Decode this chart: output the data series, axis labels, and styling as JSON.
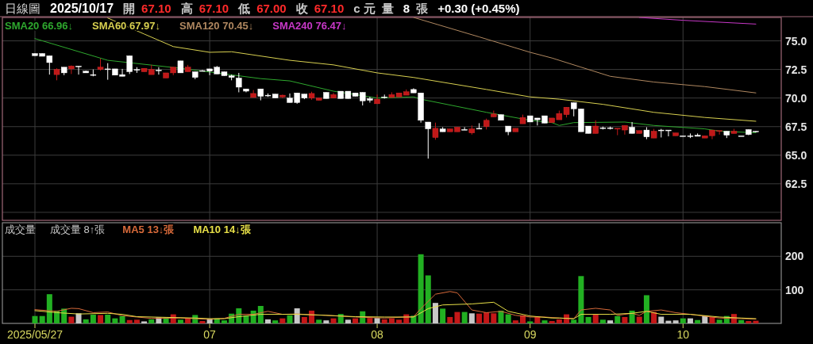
{
  "chart_data": [
    {
      "type": "candlestick",
      "title": "日線圖",
      "subtitle": "2025/10/17",
      "annotations": [
        "開",
        "67.10",
        "高",
        "67.10",
        "低",
        "67.00",
        "收",
        "67.10",
        "c 元",
        "量",
        "8",
        "張",
        "+0.30 (+0.45%)"
      ],
      "categories": [
        "2025/05/27",
        null,
        null,
        null,
        null,
        null,
        null,
        null,
        null,
        null,
        null,
        null,
        null,
        null,
        null,
        null,
        null,
        null,
        null,
        null,
        null,
        null,
        null,
        null,
        "07",
        null,
        null,
        null,
        null,
        null,
        null,
        null,
        null,
        null,
        null,
        null,
        null,
        null,
        null,
        null,
        null,
        null,
        null,
        null,
        null,
        null,
        null,
        "08",
        null,
        null,
        null,
        null,
        null,
        null,
        null,
        null,
        null,
        null,
        null,
        null,
        null,
        null,
        null,
        null,
        null,
        null,
        null,
        null,
        "09",
        null,
        null,
        null,
        null,
        null,
        null,
        null,
        null,
        null,
        null,
        null,
        null,
        null,
        null,
        null,
        null,
        null,
        null,
        null,
        null,
        "10",
        null,
        null,
        null,
        null,
        null,
        null,
        null,
        null,
        null,
        null
      ],
      "ohlc": [
        [
          73.9,
          73.9,
          73.7,
          73.7
        ],
        [
          73.9,
          73.9,
          73.65,
          73.65
        ],
        [
          73.7,
          73.7,
          72.05,
          73.1
        ],
        [
          72.05,
          72.6,
          71.55,
          72.5
        ],
        [
          72.7,
          72.7,
          72.0,
          72.2
        ],
        [
          72.55,
          72.85,
          72.1,
          72.8
        ],
        [
          72.8,
          72.8,
          72.05,
          72.8
        ],
        [
          72.35,
          72.4,
          72.2,
          72.2
        ],
        [
          72.05,
          72.5,
          71.9,
          72.05
        ],
        [
          72.5,
          73.45,
          72.4,
          72.7
        ],
        [
          72.55,
          73.05,
          71.6,
          72.55
        ],
        [
          72.55,
          72.55,
          72.0,
          72.0
        ],
        [
          72.05,
          72.55,
          71.9,
          71.9
        ],
        [
          73.7,
          73.7,
          72.1,
          72.3
        ],
        [
          72.5,
          72.7,
          72.2,
          72.5
        ],
        [
          72.3,
          72.6,
          72.3,
          72.6
        ],
        [
          72.05,
          72.9,
          72.05,
          72.5
        ],
        [
          72.45,
          72.7,
          72.05,
          72.45
        ],
        [
          71.75,
          72.2,
          71.75,
          72.2
        ],
        [
          72.2,
          72.7,
          72.0,
          72.7
        ],
        [
          73.25,
          73.25,
          72.2,
          72.2
        ],
        [
          72.3,
          72.9,
          72.3,
          72.7
        ],
        [
          72.3,
          72.3,
          71.65,
          71.8
        ],
        [
          72.4,
          72.45,
          72.35,
          72.4
        ],
        [
          72.55,
          72.55,
          72.0,
          72.35
        ],
        [
          72.7,
          72.8,
          72.1,
          72.1
        ],
        [
          72.3,
          72.3,
          71.95,
          71.95
        ],
        [
          71.95,
          72.05,
          71.55,
          71.8
        ],
        [
          71.75,
          72.2,
          70.5,
          70.95
        ],
        [
          70.8,
          70.8,
          70.5,
          70.6
        ],
        [
          70.05,
          70.7,
          70.05,
          70.4
        ],
        [
          70.8,
          70.8,
          69.8,
          70.15
        ],
        [
          70.25,
          70.4,
          70.1,
          70.25
        ],
        [
          70.35,
          70.35,
          70.0,
          70.0
        ],
        [
          70.1,
          70.3,
          70.0,
          70.25
        ],
        [
          70.0,
          70.4,
          69.6,
          69.6
        ],
        [
          70.45,
          70.45,
          69.5,
          69.6
        ],
        [
          70.35,
          70.35,
          69.9,
          70.0
        ],
        [
          70.0,
          70.55,
          69.85,
          70.4
        ],
        [
          69.8,
          70.0,
          69.8,
          70.0
        ],
        [
          70.5,
          70.5,
          69.95,
          69.95
        ],
        [
          70.0,
          70.45,
          70.0,
          70.3
        ],
        [
          70.6,
          70.6,
          69.95,
          69.95
        ],
        [
          70.6,
          70.6,
          69.95,
          69.95
        ],
        [
          70.45,
          70.45,
          70.15,
          70.15
        ],
        [
          70.5,
          70.5,
          69.35,
          69.75
        ],
        [
          69.95,
          70.1,
          69.6,
          69.8
        ],
        [
          69.5,
          70.3,
          69.5,
          69.9
        ],
        [
          70.1,
          70.3,
          69.95,
          70.1
        ],
        [
          70.05,
          70.5,
          70.05,
          70.3
        ],
        [
          70.1,
          70.45,
          70.1,
          70.45
        ],
        [
          70.25,
          70.75,
          70.25,
          70.55
        ],
        [
          70.75,
          70.85,
          70.45,
          70.45
        ],
        [
          70.45,
          70.45,
          67.85,
          68.05
        ],
        [
          67.9,
          67.9,
          64.7,
          67.3
        ],
        [
          66.55,
          67.85,
          66.35,
          67.35
        ],
        [
          67.3,
          67.45,
          67.05,
          67.05
        ],
        [
          67.05,
          67.3,
          67.05,
          67.3
        ],
        [
          67.05,
          67.45,
          67.05,
          67.45
        ],
        [
          67.25,
          67.45,
          67.2,
          67.25
        ],
        [
          66.95,
          67.6,
          66.8,
          67.3
        ],
        [
          67.35,
          67.8,
          67.35,
          67.35
        ],
        [
          67.5,
          68.2,
          67.25,
          68.05
        ],
        [
          68.35,
          68.9,
          68.35,
          68.6
        ],
        [
          68.55,
          68.55,
          68.05,
          68.05
        ],
        [
          67.55,
          67.55,
          66.75,
          67.05
        ],
        [
          67.05,
          67.35,
          67.05,
          67.35
        ],
        [
          67.75,
          68.55,
          67.75,
          68.3
        ],
        [
          68.45,
          68.45,
          67.9,
          67.9
        ],
        [
          68.25,
          68.25,
          67.6,
          68.1
        ],
        [
          68.45,
          68.45,
          67.8,
          67.8
        ],
        [
          67.85,
          68.25,
          67.85,
          68.25
        ],
        [
          68.1,
          68.9,
          68.1,
          68.65
        ],
        [
          68.55,
          69.2,
          68.3,
          69.2
        ],
        [
          69.6,
          69.6,
          68.4,
          69.05
        ],
        [
          69.05,
          69.05,
          67.05,
          67.05
        ],
        [
          67.55,
          67.55,
          66.9,
          66.9
        ],
        [
          66.9,
          68.05,
          66.9,
          67.55
        ],
        [
          67.4,
          67.5,
          67.25,
          67.4
        ],
        [
          67.4,
          67.5,
          67.25,
          67.4
        ],
        [
          67.3,
          67.35,
          66.75,
          67.35
        ],
        [
          67.2,
          67.6,
          66.8,
          67.6
        ],
        [
          67.45,
          67.9,
          66.9,
          66.9
        ],
        [
          66.9,
          67.15,
          66.9,
          67.15
        ],
        [
          67.2,
          67.45,
          66.4,
          66.6
        ],
        [
          66.5,
          67.3,
          66.5,
          67.1
        ],
        [
          67.2,
          67.3,
          66.55,
          67.2
        ],
        [
          67.2,
          67.2,
          66.65,
          67.2
        ],
        [
          66.7,
          66.95,
          66.7,
          66.95
        ],
        [
          66.7,
          66.7,
          66.7,
          66.7
        ],
        [
          66.7,
          66.9,
          66.5,
          66.7
        ],
        [
          66.75,
          66.9,
          66.65,
          66.65
        ],
        [
          66.5,
          66.7,
          66.5,
          66.7
        ],
        [
          66.7,
          67.2,
          66.4,
          67.2
        ],
        [
          67.1,
          67.15,
          66.8,
          67.15
        ],
        [
          67.1,
          67.1,
          66.5,
          66.75
        ],
        [
          66.9,
          67.3,
          66.9,
          67.1
        ],
        [
          66.7,
          66.7,
          66.7,
          66.7
        ],
        [
          67.25,
          67.25,
          66.75,
          66.8
        ],
        [
          67.1,
          67.1,
          67.0,
          67.1
        ]
      ],
      "series": [
        {
          "type": "line",
          "name": "SMA20 66.96↓",
          "color": "#2ea82e",
          "values": [
            75.2,
            null,
            null,
            null,
            null,
            null,
            null,
            null,
            null,
            null,
            73.3,
            null,
            null,
            null,
            null,
            null,
            null,
            null,
            null,
            null,
            72.6,
            null,
            null,
            null,
            null,
            null,
            null,
            null,
            null,
            null,
            null,
            71.7,
            null,
            null,
            null,
            71.5,
            null,
            null,
            null,
            null,
            null,
            70.6,
            null,
            null,
            null,
            null,
            null,
            70.0,
            null,
            null,
            null,
            null,
            70.1,
            69.9,
            null,
            null,
            null,
            null,
            null,
            null,
            null,
            null,
            68.75,
            null,
            null,
            null,
            null,
            null,
            68.05,
            null,
            null,
            67.85,
            67.6,
            null,
            67.85,
            null,
            null,
            null,
            null,
            null,
            null,
            67.9,
            null,
            null,
            null,
            67.6,
            null,
            null,
            null,
            null,
            null,
            null,
            67.3,
            null,
            67.1,
            null,
            null,
            null,
            null,
            66.96
          ]
        },
        {
          "type": "line",
          "name": "SMA60 67.97↓",
          "color": "#d8d050",
          "values": [
            null,
            null,
            null,
            null,
            null,
            null,
            null,
            null,
            null,
            null,
            77.0,
            null,
            null,
            null,
            null,
            75.6,
            null,
            null,
            null,
            74.5,
            null,
            null,
            null,
            null,
            74.0,
            null,
            null,
            74.05,
            null,
            null,
            null,
            null,
            null,
            null,
            null,
            73.3,
            null,
            null,
            null,
            null,
            null,
            72.9,
            null,
            null,
            null,
            null,
            null,
            72.2,
            null,
            null,
            null,
            null,
            71.8,
            null,
            null,
            null,
            null,
            null,
            null,
            null,
            null,
            null,
            70.75,
            null,
            null,
            null,
            null,
            null,
            70.1,
            null,
            null,
            null,
            69.9,
            null,
            null,
            null,
            null,
            null,
            69.45,
            null,
            null,
            null,
            null,
            null,
            null,
            68.75,
            null,
            null,
            null,
            null,
            null,
            null,
            68.3,
            null,
            null,
            null,
            null,
            null,
            null,
            67.97
          ]
        },
        {
          "type": "line",
          "name": "SMA120 70.45↓",
          "color": "#b08860",
          "values": [
            null,
            null,
            null,
            null,
            null,
            null,
            null,
            null,
            null,
            null,
            null,
            null,
            null,
            null,
            null,
            null,
            null,
            null,
            null,
            null,
            null,
            null,
            null,
            null,
            null,
            null,
            null,
            null,
            null,
            null,
            null,
            null,
            null,
            null,
            null,
            null,
            null,
            null,
            null,
            null,
            null,
            null,
            null,
            null,
            null,
            null,
            null,
            null,
            null,
            null,
            null,
            null,
            77.05,
            null,
            null,
            null,
            null,
            null,
            null,
            null,
            null,
            75.35,
            null,
            null,
            null,
            null,
            null,
            null,
            74.0,
            null,
            null,
            73.5,
            null,
            null,
            null,
            72.7,
            null,
            null,
            null,
            71.9,
            null,
            null,
            null,
            null,
            null,
            71.4,
            null,
            null,
            null,
            null,
            null,
            null,
            71.0,
            null,
            null,
            null,
            null,
            null,
            null,
            70.45
          ]
        },
        {
          "type": "line",
          "name": "SMA240 76.47↓",
          "color": "#c838c8",
          "values": [
            null,
            null,
            null,
            null,
            null,
            null,
            null,
            null,
            null,
            null,
            null,
            null,
            null,
            null,
            null,
            null,
            null,
            null,
            null,
            null,
            null,
            null,
            null,
            null,
            null,
            null,
            null,
            null,
            null,
            null,
            null,
            null,
            null,
            null,
            null,
            null,
            null,
            null,
            null,
            null,
            null,
            null,
            null,
            null,
            null,
            null,
            null,
            null,
            null,
            null,
            null,
            null,
            null,
            null,
            null,
            null,
            null,
            null,
            null,
            null,
            null,
            null,
            null,
            null,
            null,
            null,
            null,
            null,
            null,
            null,
            null,
            null,
            null,
            null,
            null,
            null,
            null,
            null,
            null,
            null,
            null,
            null,
            null,
            77.05,
            null,
            null,
            null,
            null,
            null,
            76.8,
            null,
            null,
            null,
            null,
            null,
            null,
            null,
            null,
            null,
            76.47
          ]
        }
      ],
      "ylim": [
        59.3,
        77.05
      ],
      "yticks": [
        {
          "value": 60,
          "label": null
        },
        62.5,
        {
          "value": 65,
          "label": "65.0"
        },
        67.5,
        {
          "value": 70,
          "label": "70.0"
        },
        72.5,
        {
          "value": 75,
          "label": "75.0"
        }
      ],
      "grid": true,
      "legend": "top left",
      "tick_labels": "y"
    },
    {
      "type": "bar",
      "title": "成交量",
      "annotations": [
        "成交量 8↑張"
      ],
      "categories": [
        "2025/05/27",
        null,
        null,
        null,
        null,
        null,
        null,
        null,
        null,
        null,
        null,
        null,
        null,
        null,
        null,
        null,
        null,
        null,
        null,
        null,
        null,
        null,
        null,
        null,
        "07",
        null,
        null,
        null,
        null,
        null,
        null,
        null,
        null,
        null,
        null,
        null,
        null,
        null,
        null,
        null,
        null,
        null,
        null,
        null,
        null,
        null,
        null,
        "08",
        null,
        null,
        null,
        null,
        null,
        null,
        null,
        null,
        null,
        null,
        null,
        null,
        null,
        null,
        null,
        null,
        null,
        null,
        null,
        null,
        "09",
        null,
        null,
        null,
        null,
        null,
        null,
        null,
        null,
        null,
        null,
        null,
        null,
        null,
        null,
        null,
        null,
        null,
        null,
        null,
        null,
        "10",
        null,
        null,
        null,
        null,
        null,
        null,
        null,
        null,
        null,
        null
      ],
      "series": [
        {
          "type": "bar",
          "values": [
            22,
            22,
            87,
            38,
            44,
            20,
            30,
            12,
            26,
            25,
            26,
            15,
            22,
            10,
            11,
            6,
            12,
            18,
            18,
            27,
            11,
            15,
            25,
            7,
            14,
            15,
            9,
            29,
            45,
            23,
            38,
            52,
            12,
            9,
            15,
            24,
            45,
            19,
            38,
            11,
            9,
            15,
            28,
            11,
            15,
            36,
            16,
            16,
            12,
            15,
            11,
            27,
            23,
            206,
            143,
            61,
            44,
            19,
            34,
            34,
            30,
            29,
            33,
            30,
            38,
            27,
            9,
            24,
            6,
            20,
            9,
            7,
            12,
            27,
            11,
            141,
            19,
            26,
            11,
            9,
            22,
            19,
            38,
            20,
            84,
            34,
            20,
            8,
            9,
            15,
            15,
            10,
            23,
            19,
            11,
            22,
            28,
            10,
            7,
            8
          ],
          "colors": [
            "#22b022",
            "#22b022",
            "#22b022",
            "#22b022",
            "#22b022",
            "#c41818",
            "#c8c8c8",
            "#22b022",
            "#22b022",
            "#c41818",
            "#22b022",
            "#22b022",
            "#22b022",
            "#c41818",
            "#c41818",
            "#c8c8c8",
            "#22b022",
            "#c8c8c8",
            "#22b022",
            "#c41818",
            "#22b022",
            "#c41818",
            "#22b022",
            "#c41818",
            "#c8c8c8",
            "#22b022",
            "#22b022",
            "#22b022",
            "#22b022",
            "#22b022",
            "#22b022",
            "#22b022",
            "#c8c8c8",
            "#22b022",
            "#c41818",
            "#22b022",
            "#c8c8c8",
            "#c41818",
            "#c41818",
            "#22b022",
            "#c8c8c8",
            "#c41818",
            "#22b022",
            "#c8c8c8",
            "#c41818",
            "#22b022",
            "#c41818",
            "#c8c8c8",
            "#c41818",
            "#c41818",
            "#c41818",
            "#c41818",
            "#22b022",
            "#22b022",
            "#22b022",
            "#c8c8c8",
            "#22b022",
            "#c41818",
            "#c41818",
            "#22b022",
            "#c8c8c8",
            "#c41818",
            "#c41818",
            "#c41818",
            "#22b022",
            "#22b022",
            "#c41818",
            "#c41818",
            "#22b022",
            "#c41818",
            "#22b022",
            "#c41818",
            "#c41818",
            "#c41818",
            "#22b022",
            "#22b022",
            "#22b022",
            "#c41818",
            "#22b022",
            "#c8c8c8",
            "#22b022",
            "#c41818",
            "#22b022",
            "#c41818",
            "#22b022",
            "#c41818",
            "#c8c8c8",
            "#c8c8c8",
            "#c8c8c8",
            "#22b022",
            "#c8c8c8",
            "#22b022",
            "#c8c8c8",
            "#c41818",
            "#22b022",
            "#22b022",
            "#c41818",
            "#22b022",
            "#c41818",
            "#c41818"
          ]
        },
        {
          "type": "line",
          "name": "MA5 13↓張",
          "color": "#d86a3a",
          "values": [
            41,
            null,
            null,
            36,
            null,
            45,
            44,
            null,
            32,
            null,
            34,
            null,
            23,
            null,
            19,
            null,
            15,
            null,
            null,
            null,
            16,
            null,
            null,
            null,
            12,
            null,
            15,
            null,
            27,
            null,
            27,
            null,
            36,
            null,
            27,
            null,
            28,
            null,
            null,
            null,
            24,
            null,
            null,
            null,
            19,
            null,
            null,
            null,
            16,
            null,
            null,
            null,
            20,
            44,
            null,
            87,
            null,
            95,
            91,
            null,
            40,
            null,
            32,
            null,
            36,
            null,
            24,
            null,
            19,
            null,
            19,
            null,
            16,
            null,
            14,
            40,
            null,
            45,
            null,
            40,
            24,
            null,
            30,
            24,
            36,
            null,
            40,
            null,
            32,
            null,
            27,
            null,
            null,
            null,
            16,
            null,
            null,
            null,
            null,
            13
          ]
        },
        {
          "type": "line",
          "name": "MA10 14↓張",
          "color": "#e8e048",
          "values": [
            38,
            null,
            null,
            32,
            null,
            null,
            28,
            null,
            null,
            null,
            30,
            null,
            27,
            null,
            20,
            null,
            null,
            null,
            18,
            null,
            null,
            null,
            16,
            null,
            14,
            null,
            14,
            null,
            20,
            null,
            null,
            27,
            null,
            null,
            27,
            null,
            27,
            null,
            null,
            null,
            24,
            null,
            null,
            null,
            20,
            null,
            null,
            null,
            19,
            null,
            null,
            null,
            19,
            null,
            44,
            null,
            55,
            null,
            null,
            null,
            58,
            null,
            null,
            63,
            null,
            36,
            null,
            null,
            22,
            null,
            null,
            16,
            16,
            null,
            14,
            27,
            null,
            null,
            null,
            27,
            null,
            null,
            30,
            null,
            36,
            null,
            27,
            null,
            null,
            null,
            27,
            null,
            null,
            null,
            19,
            null,
            null,
            16,
            null,
            14
          ]
        }
      ],
      "ylim": [
        0,
        300
      ],
      "yticks": [
        100,
        200
      ],
      "grid": true,
      "legend": "top left"
    }
  ]
}
